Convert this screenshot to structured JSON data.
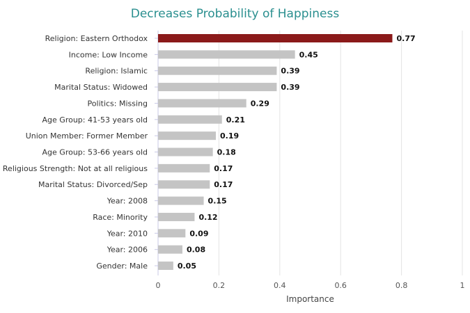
{
  "chart_data": {
    "type": "bar",
    "orientation": "horizontal",
    "title": "Decreases Probability of Happiness",
    "xlabel": "Importance",
    "ylabel": "",
    "xlim": [
      0,
      1
    ],
    "x_ticks": [
      "0",
      "0.2",
      "0.4",
      "0.6",
      "0.8",
      "1"
    ],
    "grid": "vertical",
    "categories": [
      "Religion: Eastern Orthodox",
      "Income: Low Income",
      "Religion: Islamic",
      "Marital Status: Widowed",
      "Politics: Missing",
      "Age Group: 41-53 years old",
      "Union Member: Former Member",
      "Age Group: 53-66 years old",
      "Religious Strength: Not at all religious",
      "Marital Status: Divorced/Sep",
      "Year: 2008",
      "Race: Minority",
      "Year: 2010",
      "Year: 2006",
      "Gender: Male"
    ],
    "values": [
      0.77,
      0.45,
      0.39,
      0.39,
      0.29,
      0.21,
      0.19,
      0.18,
      0.17,
      0.17,
      0.15,
      0.12,
      0.09,
      0.08,
      0.05
    ],
    "value_labels": [
      "0.77",
      "0.45",
      "0.39",
      "0.39",
      "0.29",
      "0.21",
      "0.19",
      "0.18",
      "0.17",
      "0.17",
      "0.15",
      "0.12",
      "0.09",
      "0.08",
      "0.05"
    ],
    "colors": {
      "highlight": "#8b1a1a",
      "default": "#c4c4c4",
      "title": "#2a8f8f",
      "grid": "#e3e3e3",
      "axis_line": "#c8c8e6"
    },
    "highlight_index": 0
  }
}
